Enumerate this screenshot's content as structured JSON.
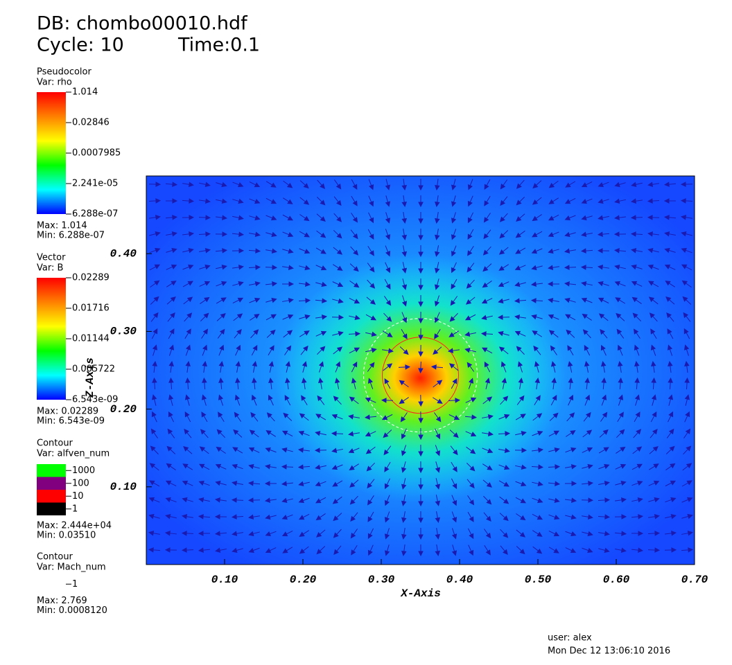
{
  "header": {
    "db": "DB: chombo00010.hdf",
    "cycle": "Cycle: 10",
    "time": "Time:0.1"
  },
  "legends": [
    {
      "title": "Pseudocolor",
      "var": "Var: rho",
      "colorbar": [
        "#ff0000",
        "#ff8000",
        "#ffff00",
        "#00ff00",
        "#00ffff",
        "#0000ff"
      ],
      "ticks": [
        "1.014",
        "0.02846",
        "0.0007985",
        "2.241e-05",
        "6.288e-07"
      ],
      "max": "Max:  1.014",
      "min": "Min:  6.288e-07"
    },
    {
      "title": "Vector",
      "var": "Var: B",
      "colorbar": [
        "#ff0000",
        "#ff8000",
        "#ffff00",
        "#00ff00",
        "#00ffff",
        "#0000ff"
      ],
      "ticks": [
        "0.02289",
        "0.01716",
        "0.01144",
        "0.005722",
        "6.543e-09"
      ],
      "max": "Max:  0.02289",
      "min": "Min:  6.543e-09"
    },
    {
      "title": "Contour",
      "var": "Var: alfven_num",
      "levels": [
        {
          "label": "1000",
          "color": "#00ff00"
        },
        {
          "label": "100",
          "color": "#800080"
        },
        {
          "label": "10",
          "color": "#ff0000"
        },
        {
          "label": "1",
          "color": "#000000"
        }
      ],
      "max": "Max:  2.444e+04",
      "min": "Min:  0.03510"
    },
    {
      "title": "Contour",
      "var": "Var: Mach_num",
      "levels": [
        {
          "label": "1",
          "color": "#ffffff"
        }
      ],
      "max": "Max:  2.769",
      "min": "Min:  0.0008120"
    }
  ],
  "chart_data": {
    "type": "field",
    "x_label": "X-Axis",
    "y_label": "Z-Axis",
    "xlim": [
      0,
      0.7
    ],
    "ylim": [
      0,
      0.5
    ],
    "xticks": [
      {
        "value": 0.1,
        "label": "0.10"
      },
      {
        "value": 0.2,
        "label": "0.20"
      },
      {
        "value": 0.3,
        "label": "0.30"
      },
      {
        "value": 0.4,
        "label": "0.40"
      },
      {
        "value": 0.5,
        "label": "0.50"
      },
      {
        "value": 0.6,
        "label": "0.60"
      },
      {
        "value": 0.7,
        "label": "0.70"
      }
    ],
    "yticks": [
      {
        "value": 0.1,
        "label": "0.10"
      },
      {
        "value": 0.2,
        "label": "0.20"
      },
      {
        "value": 0.3,
        "label": "0.30"
      },
      {
        "value": 0.4,
        "label": "0.40"
      }
    ]
  },
  "footer": {
    "user": "user: alex",
    "date": "Mon Dec 12 13:06:10 2016"
  }
}
